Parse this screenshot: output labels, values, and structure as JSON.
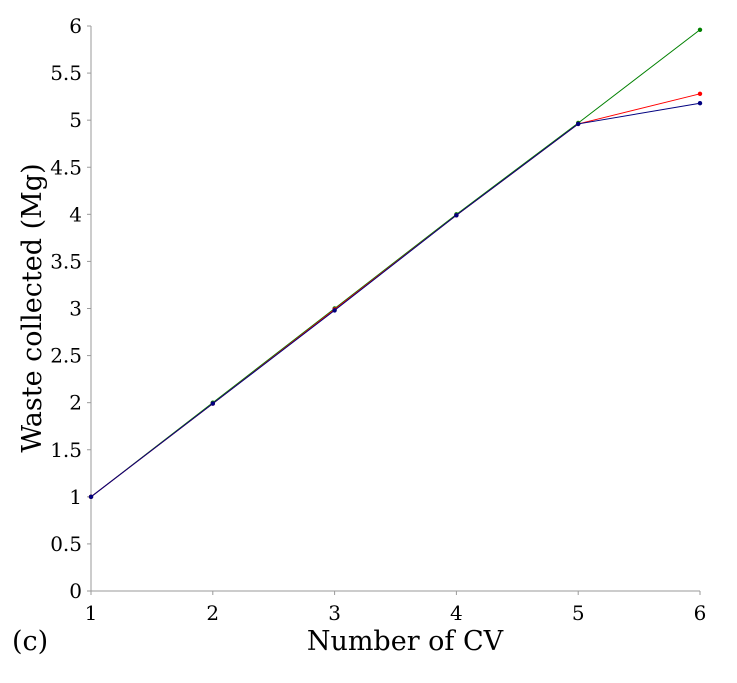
{
  "chart_data": {
    "type": "line",
    "title": "",
    "panel_label": "(c)",
    "xlabel": "Number of CV",
    "ylabel": "Waste collected (Mg)",
    "xlim": [
      1,
      6
    ],
    "ylim": [
      0,
      6
    ],
    "x_ticks": [
      "1",
      "2",
      "3",
      "4",
      "5",
      "6"
    ],
    "y_ticks": [
      "0",
      "0.5",
      "1",
      "1.5",
      "2",
      "2.5",
      "3",
      "3.5",
      "4",
      "4.5",
      "5",
      "5.5",
      "6"
    ],
    "grid": false,
    "legend": "none",
    "x": [
      1,
      2,
      3,
      4,
      5,
      6
    ],
    "series": [
      {
        "color": "#008000",
        "values": [
          1.0,
          2.0,
          3.0,
          4.0,
          4.97,
          5.96
        ]
      },
      {
        "color": "#ff0000",
        "values": [
          1.0,
          1.99,
          2.99,
          3.99,
          4.96,
          5.28
        ]
      },
      {
        "color": "#000080",
        "values": [
          1.0,
          1.99,
          2.98,
          3.99,
          4.96,
          5.18
        ]
      }
    ]
  }
}
